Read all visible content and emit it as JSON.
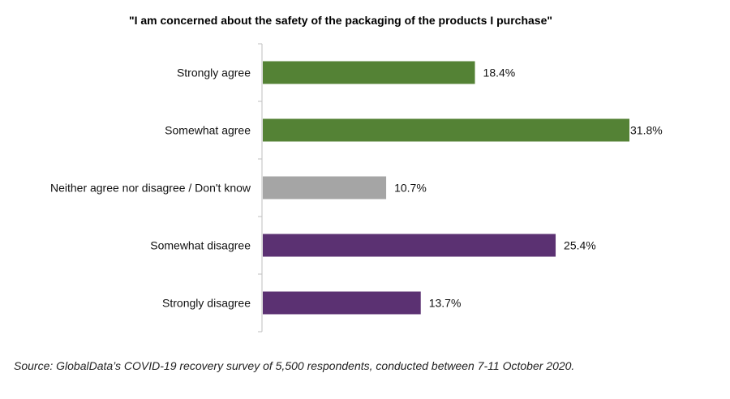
{
  "chart_data": {
    "type": "bar",
    "orientation": "horizontal",
    "title": "\"I am concerned about the safety of the packaging of the products I purchase\"",
    "categories": [
      "Strongly agree",
      "Somewhat agree",
      "Neither agree nor disagree / Don't know",
      "Somewhat disagree",
      "Strongly disagree"
    ],
    "values": [
      18.4,
      31.8,
      10.7,
      25.4,
      13.7
    ],
    "data_labels": [
      "18.4%",
      "31.8%",
      "10.7%",
      "25.4%",
      "13.7%"
    ],
    "colors": [
      "#548235",
      "#548235",
      "#A5A5A5",
      "#5B3172",
      "#5B3172"
    ],
    "xlim": [
      0,
      31.8
    ],
    "grid": false,
    "legend": "none"
  },
  "source": "Source: GlobalData’s COVID-19 recovery survey of 5,500 respondents, conducted between 7-11 October 2020."
}
